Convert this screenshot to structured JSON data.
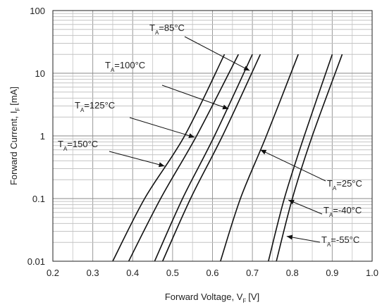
{
  "chart_data": {
    "type": "line",
    "title": "",
    "xlabel": {
      "main": "Forward Voltage, V",
      "sub": "F",
      "unit": "[V]"
    },
    "ylabel": {
      "main": "Forward Current, I",
      "sub": "F",
      "unit": "[mA]"
    },
    "xlim": [
      0.2,
      1.0
    ],
    "ylim": [
      0.01,
      100
    ],
    "y_scale": "log",
    "grid": true,
    "x_ticks": [
      "0.2",
      "0.3",
      "0.4",
      "0.5",
      "0.6",
      "0.7",
      "0.8",
      "0.9",
      "1.0"
    ],
    "y_ticks": [
      "100",
      "10",
      "1",
      "0.1",
      "0.01"
    ],
    "series": [
      {
        "name": "T_A=150°C",
        "x": [
          0.35,
          0.43,
          0.53,
          0.63
        ],
        "y": [
          0.01,
          0.1,
          1,
          20
        ]
      },
      {
        "name": "T_A=125°C",
        "x": [
          0.39,
          0.47,
          0.56,
          0.665
        ],
        "y": [
          0.01,
          0.1,
          1,
          20
        ]
      },
      {
        "name": "T_A=100°C",
        "x": [
          0.455,
          0.525,
          0.605,
          0.7
        ],
        "y": [
          0.01,
          0.1,
          1,
          20
        ]
      },
      {
        "name": "T_A=85°C",
        "x": [
          0.475,
          0.545,
          0.625,
          0.72
        ],
        "y": [
          0.01,
          0.1,
          1,
          20
        ]
      },
      {
        "name": "T_A=25°C",
        "x": [
          0.62,
          0.67,
          0.735,
          0.815
        ],
        "y": [
          0.01,
          0.1,
          1,
          20
        ]
      },
      {
        "name": "T_A=-40°C",
        "x": [
          0.74,
          0.78,
          0.83,
          0.9
        ],
        "y": [
          0.01,
          0.1,
          1,
          20
        ]
      },
      {
        "name": "T_A=-55°C",
        "x": [
          0.76,
          0.8,
          0.85,
          0.925
        ],
        "y": [
          0.01,
          0.1,
          1,
          20
        ]
      }
    ],
    "annotations": [
      {
        "main": "T",
        "sub": "A",
        "rest": "=85°C",
        "series": 3,
        "target": [
          0.693,
          11
        ]
      },
      {
        "main": "T",
        "sub": "A",
        "rest": "=100°C",
        "series": 2,
        "target": [
          0.64,
          2.7
        ]
      },
      {
        "main": "T",
        "sub": "A",
        "rest": "=125°C",
        "series": 1,
        "target": [
          0.555,
          0.95
        ]
      },
      {
        "main": "T",
        "sub": "A",
        "rest": "=150°C",
        "series": 0,
        "target": [
          0.48,
          0.33
        ]
      },
      {
        "main": "T",
        "sub": "A",
        "rest": "=25°C",
        "series": 4,
        "target": [
          0.72,
          0.6
        ]
      },
      {
        "main": "T",
        "sub": "A",
        "rest": "=-40°C",
        "series": 5,
        "target": [
          0.79,
          0.095
        ]
      },
      {
        "main": "T",
        "sub": "A",
        "rest": "=-55°C",
        "series": 6,
        "target": [
          0.786,
          0.025
        ]
      }
    ]
  }
}
